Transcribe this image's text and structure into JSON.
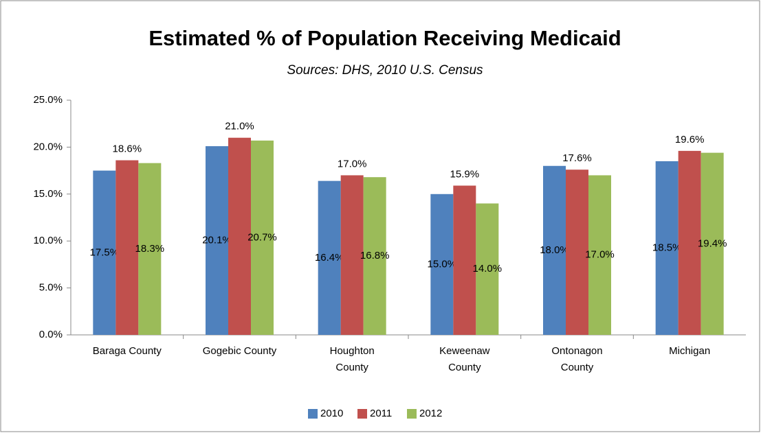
{
  "chart_data": {
    "type": "bar",
    "title": "Estimated % of Population Receiving Medicaid",
    "subtitle": "Sources:  DHS, 2010 U.S. Census",
    "categories": [
      "Baraga County",
      "Gogebic County",
      "Houghton County",
      "Keweenaw County",
      "Ontonagon County",
      "Michigan"
    ],
    "series": [
      {
        "name": "2010",
        "color": "#4f81bd",
        "values": [
          17.5,
          20.1,
          16.4,
          15.0,
          18.0,
          18.5
        ],
        "value_labels": [
          "17.5%",
          "20.1%",
          "16.4%",
          "15.0%",
          "18.0%",
          "18.5%"
        ]
      },
      {
        "name": "2011",
        "color": "#c0504d",
        "values": [
          18.6,
          21.0,
          17.0,
          15.9,
          17.6,
          19.6
        ],
        "value_labels": [
          "18.6%",
          "21.0%",
          "17.0%",
          "15.9%",
          "17.6%",
          "19.6%"
        ]
      },
      {
        "name": "2012",
        "color": "#9bbb59",
        "values": [
          18.3,
          20.7,
          16.8,
          14.0,
          17.0,
          19.4
        ],
        "value_labels": [
          "18.3%",
          "20.7%",
          "16.8%",
          "14.0%",
          "17.0%",
          "19.4%"
        ]
      }
    ],
    "ylim": [
      0,
      25
    ],
    "yticks": [
      {
        "value": 0,
        "label": "0.0%"
      },
      {
        "value": 5,
        "label": "5.0%"
      },
      {
        "value": 10,
        "label": "10.0%"
      },
      {
        "value": 15,
        "label": "15.0%"
      },
      {
        "value": 20,
        "label": "20.0%"
      },
      {
        "value": 25,
        "label": "25.0%"
      }
    ],
    "legend": "bottom"
  }
}
